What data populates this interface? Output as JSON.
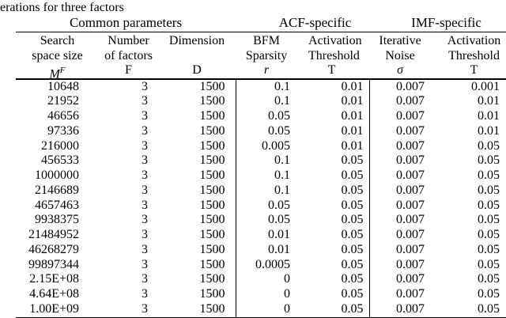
{
  "caption": "erations for three factors",
  "colors": {
    "text": "#000000",
    "background": "#ffffff",
    "rule": "#000000"
  },
  "table": {
    "groups": [
      {
        "label": "Common parameters"
      },
      {
        "label": "ACF-specific"
      },
      {
        "label": "IMF-specific"
      }
    ],
    "columns": [
      {
        "line1": "Search",
        "line2": "space size",
        "symbol_base": "M",
        "symbol_sup": "F"
      },
      {
        "line1": "Number",
        "line2": "of factors",
        "symbol": "F"
      },
      {
        "line1": "Dimension",
        "line2": "",
        "symbol": "D"
      },
      {
        "line1": "BFM",
        "line2": "Sparsity",
        "symbol": "r"
      },
      {
        "line1": "Activation",
        "line2": "Threshold",
        "symbol": "T"
      },
      {
        "line1": "Iterative",
        "line2": "Noise",
        "symbol": "σ"
      },
      {
        "line1": "Activation",
        "line2": "Threshold",
        "symbol": "T"
      }
    ],
    "rows": [
      [
        "10648",
        "3",
        "1500",
        "0.1",
        "0.01",
        "0.007",
        "0.001"
      ],
      [
        "21952",
        "3",
        "1500",
        "0.1",
        "0.01",
        "0.007",
        "0.01"
      ],
      [
        "46656",
        "3",
        "1500",
        "0.05",
        "0.01",
        "0.007",
        "0.01"
      ],
      [
        "97336",
        "3",
        "1500",
        "0.05",
        "0.01",
        "0.007",
        "0.01"
      ],
      [
        "216000",
        "3",
        "1500",
        "0.005",
        "0.01",
        "0.007",
        "0.05"
      ],
      [
        "456533",
        "3",
        "1500",
        "0.1",
        "0.05",
        "0.007",
        "0.05"
      ],
      [
        "1000000",
        "3",
        "1500",
        "0.1",
        "0.05",
        "0.007",
        "0.05"
      ],
      [
        "2146689",
        "3",
        "1500",
        "0.1",
        "0.05",
        "0.007",
        "0.05"
      ],
      [
        "4657463",
        "3",
        "1500",
        "0.05",
        "0.05",
        "0.007",
        "0.05"
      ],
      [
        "9938375",
        "3",
        "1500",
        "0.05",
        "0.05",
        "0.007",
        "0.05"
      ],
      [
        "21484952",
        "3",
        "1500",
        "0.01",
        "0.05",
        "0.007",
        "0.05"
      ],
      [
        "46268279",
        "3",
        "1500",
        "0.01",
        "0.05",
        "0.007",
        "0.05"
      ],
      [
        "99897344",
        "3",
        "1500",
        "0.0005",
        "0.05",
        "0.007",
        "0.05"
      ],
      [
        "2.15E+08",
        "3",
        "1500",
        "0",
        "0.05",
        "0.007",
        "0.05"
      ],
      [
        "4.64E+08",
        "3",
        "1500",
        "0",
        "0.05",
        "0.007",
        "0.05"
      ],
      [
        "1.00E+09",
        "3",
        "1500",
        "0",
        "0.05",
        "0.007",
        "0.05"
      ]
    ]
  }
}
